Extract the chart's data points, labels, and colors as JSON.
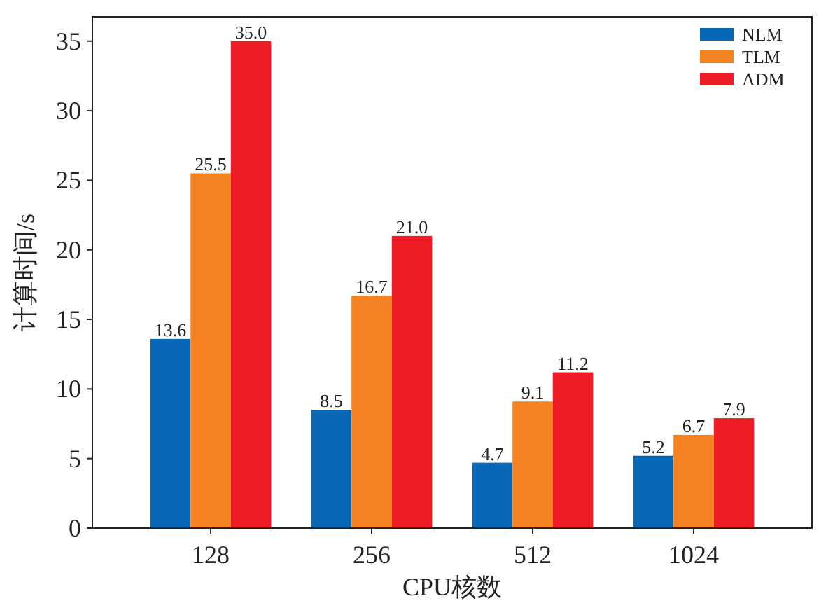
{
  "chart_data": {
    "type": "bar",
    "xlabel": "CPU核数",
    "ylabel": "计算时间/s",
    "categories": [
      "128",
      "256",
      "512",
      "1024"
    ],
    "series": [
      {
        "name": "NLM",
        "color": "#0868b8",
        "values": [
          13.6,
          8.5,
          4.7,
          5.2
        ],
        "value_labels": [
          "13.6",
          "8.5",
          "4.7",
          "5.2"
        ]
      },
      {
        "name": "TLM",
        "color": "#f58220",
        "values": [
          25.5,
          16.7,
          9.1,
          6.7
        ],
        "value_labels": [
          "25.5",
          "16.7",
          "9.1",
          "6.7"
        ]
      },
      {
        "name": "ADM",
        "color": "#ee1c25",
        "values": [
          35.0,
          21.0,
          11.2,
          7.9
        ],
        "value_labels": [
          "35.0",
          "21.0",
          "11.2",
          "7.9"
        ]
      }
    ],
    "ylim": [
      0,
      36.75
    ],
    "yticks": [
      0,
      5,
      10,
      15,
      20,
      25,
      30,
      35
    ],
    "legend": "top right",
    "grid": false
  }
}
